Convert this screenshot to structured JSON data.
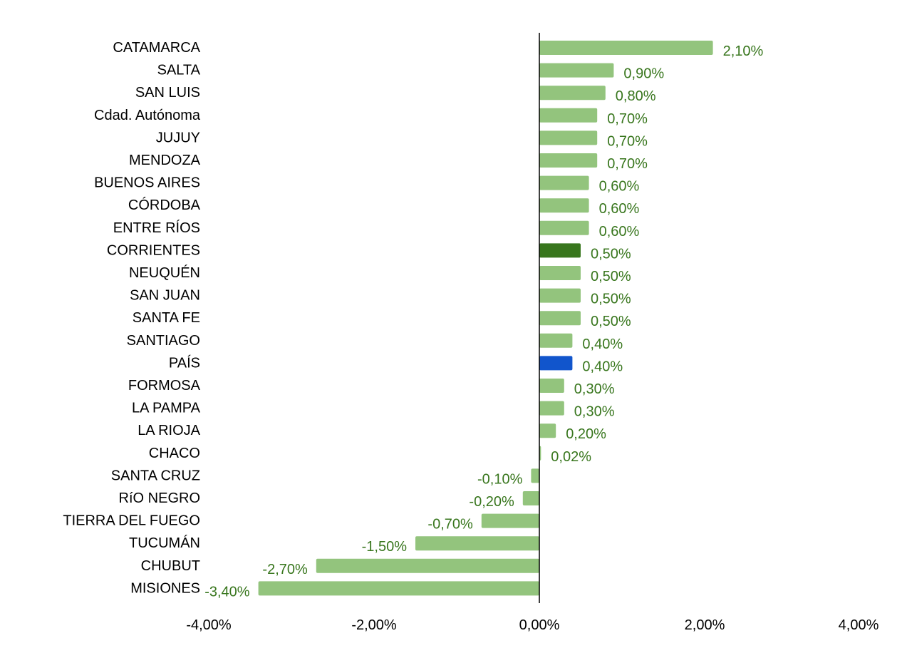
{
  "chart_data": {
    "type": "bar",
    "orientation": "horizontal",
    "categories": [
      "CATAMARCA",
      "SALTA",
      "SAN LUIS",
      "Cdad. Autónoma",
      "JUJUY",
      "MENDOZA",
      "BUENOS AIRES",
      "CÓRDOBA",
      "ENTRE RÍOS",
      "CORRIENTES",
      "NEUQUÉN",
      "SAN JUAN",
      "SANTA FE",
      "SANTIAGO",
      "PAÍS",
      "FORMOSA",
      "LA PAMPA",
      "LA RIOJA",
      "CHACO",
      "SANTA CRUZ",
      "RíO NEGRO",
      "TIERRA DEL FUEGO",
      "TUCUMÁN",
      "CHUBUT",
      "MISIONES"
    ],
    "values": [
      2.1,
      0.9,
      0.8,
      0.7,
      0.7,
      0.7,
      0.6,
      0.6,
      0.6,
      0.5,
      0.5,
      0.5,
      0.5,
      0.4,
      0.4,
      0.3,
      0.3,
      0.2,
      0.02,
      -0.1,
      -0.2,
      -0.7,
      -1.5,
      -2.7,
      -3.4
    ],
    "data_labels": [
      "2,10%",
      "0,90%",
      "0,80%",
      "0,70%",
      "0,70%",
      "0,70%",
      "0,60%",
      "0,60%",
      "0,60%",
      "0,50%",
      "0,50%",
      "0,50%",
      "0,50%",
      "0,40%",
      "0,40%",
      "0,30%",
      "0,30%",
      "0,20%",
      "0,02%",
      "-0,10%",
      "-0,20%",
      "-0,70%",
      "-1,50%",
      "-2,70%",
      "-3,40%"
    ],
    "xlim": [
      -4,
      4
    ],
    "xticks": [
      -4,
      -2,
      0,
      2,
      4
    ],
    "xtick_labels": [
      "-4,00%",
      "-2,00%",
      "0,00%",
      "2,00%",
      "4,00%"
    ],
    "title": "",
    "xlabel": "",
    "ylabel": "",
    "grid": false,
    "legend": "none",
    "colors": {
      "default_bar": "#93c47d",
      "highlight_corrientes": "#38761d",
      "highlight_pais": "#1155cc",
      "data_label": "#38761d",
      "axis_line": "#000000"
    },
    "highlights": {
      "CORRIENTES": "#38761d",
      "PAÍS": "#1155cc"
    }
  }
}
